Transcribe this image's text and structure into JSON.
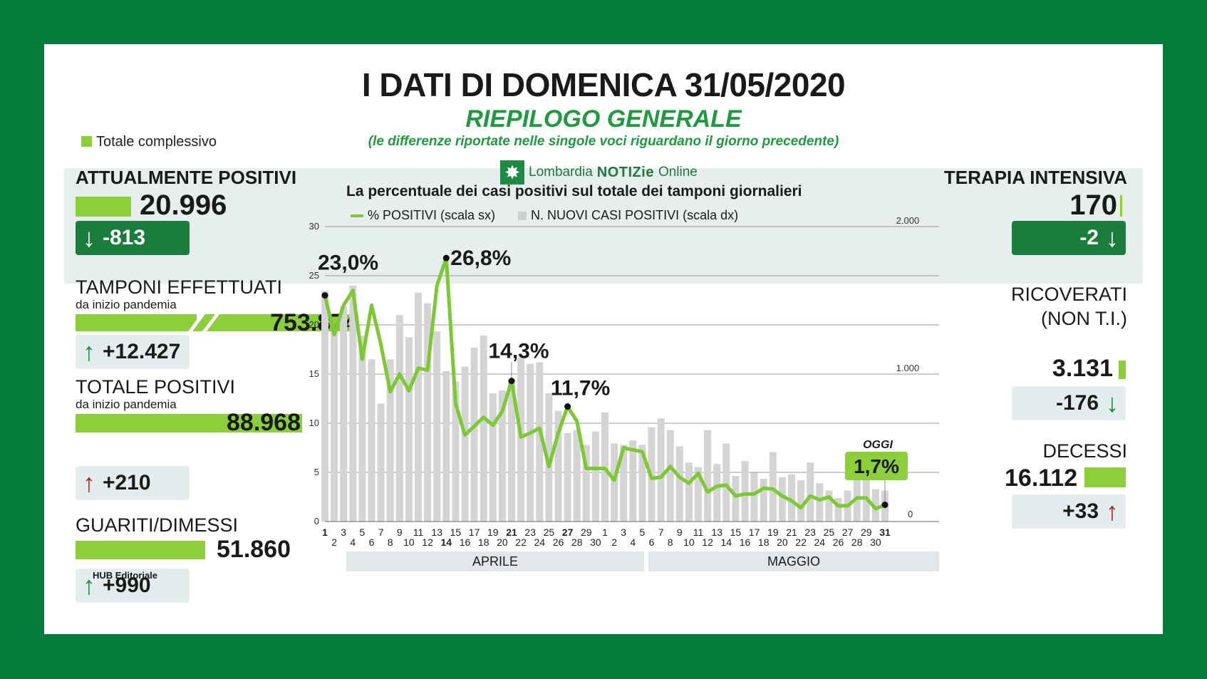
{
  "header": {
    "title": "I DATI DI DOMENICA 31/05/2020",
    "subtitle": "RIEPILOGO GENERALE",
    "note": "(le differenze riportate nelle singole voci riguardano il giorno precedente)",
    "legend_total": "Totale complessivo",
    "logo_prefix": "Lombardia",
    "logo_main": "NOTIZie",
    "logo_suffix": "Online",
    "credit": "HUB Editoriale"
  },
  "left": {
    "attualmente": {
      "label": "ATTUALMENTE POSITIVI",
      "value": "20.996",
      "delta": "-813"
    },
    "tamponi": {
      "label": "TAMPONI EFFETTUATI",
      "sublabel": "da inizio pandemia",
      "value": "753.874",
      "delta": "+12.427"
    },
    "totale": {
      "label": "TOTALE POSITIVI",
      "sublabel": "da inizio pandemia",
      "value": "88.968",
      "delta": "+210"
    },
    "guariti": {
      "label": "GUARITI/DIMESSI",
      "value": "51.860",
      "delta": "+990"
    }
  },
  "right": {
    "terapia": {
      "label": "TERAPIA INTENSIVA",
      "value": "170",
      "delta": "-2"
    },
    "ricoverati": {
      "label1": "RICOVERATI",
      "label2": "(NON T.I.)",
      "value": "3.131",
      "delta": "-176"
    },
    "decessi": {
      "label": "DECESSI",
      "value": "16.112",
      "delta": "+33"
    }
  },
  "colors": {
    "brand_green": "#047c3c",
    "bar_green": "#8ccf3c",
    "line_green": "#7dc935",
    "bar_gray": "#d4d4d4",
    "up_red": "#a8231c"
  },
  "chart_data": {
    "type": "bar+line",
    "title": "La percentuale dei casi positivi sul totale dei tamponi giornalieri",
    "legend": [
      "% POSITIVI (scala sx)",
      "N. NUOVI CASI POSITIVI (scala dx)"
    ],
    "y_left_ticks": [
      "0",
      "5",
      "10",
      "15",
      "20",
      "25",
      "30"
    ],
    "y_left_range": [
      0,
      30
    ],
    "y_right_ticks": [
      "0",
      "1.000",
      "2.000"
    ],
    "y_right_range": [
      0,
      2000
    ],
    "months": [
      "APRILE",
      "MAGGIO"
    ],
    "categories": [
      "1",
      "2",
      "3",
      "4",
      "5",
      "6",
      "7",
      "8",
      "9",
      "10",
      "11",
      "12",
      "13",
      "14",
      "15",
      "16",
      "17",
      "18",
      "19",
      "20",
      "21",
      "22",
      "23",
      "24",
      "25",
      "26",
      "27",
      "28",
      "29",
      "30",
      "1",
      "2",
      "3",
      "4",
      "5",
      "6",
      "7",
      "8",
      "9",
      "10",
      "11",
      "12",
      "13",
      "14",
      "15",
      "16",
      "17",
      "18",
      "19",
      "20",
      "21",
      "22",
      "23",
      "24",
      "25",
      "26",
      "27",
      "28",
      "29",
      "30",
      "31"
    ],
    "bold_categories": [
      "1",
      "14",
      "21",
      "27",
      "31"
    ],
    "series": [
      {
        "name": "% POSITIVI (scala sx)",
        "kind": "line",
        "values": [
          23.0,
          19.0,
          22.0,
          23.5,
          16.5,
          22.0,
          18.0,
          13.2,
          15.0,
          13.3,
          15.6,
          15.4,
          24.0,
          26.8,
          12.0,
          8.8,
          9.7,
          10.6,
          9.8,
          11.2,
          14.3,
          8.6,
          9.0,
          9.5,
          5.6,
          9.0,
          11.7,
          10.2,
          5.4,
          5.4,
          5.4,
          4.2,
          7.5,
          7.3,
          7.1,
          4.4,
          4.5,
          5.6,
          4.5,
          3.9,
          4.9,
          3.0,
          3.6,
          3.7,
          2.6,
          2.8,
          2.8,
          3.4,
          3.3,
          2.6,
          2.1,
          1.4,
          2.6,
          2.2,
          2.5,
          1.6,
          1.6,
          2.4,
          2.4,
          1.3,
          1.7
        ]
      },
      {
        "name": "N. NUOVI CASI POSITIVI (scala dx)",
        "kind": "bar",
        "values": [
          1565,
          1290,
          1460,
          1600,
          1260,
          1100,
          800,
          1100,
          1400,
          1250,
          1550,
          1480,
          1290,
          1020,
          950,
          1050,
          1180,
          1260,
          870,
          890,
          960,
          1110,
          1070,
          1080,
          870,
          750,
          600,
          620,
          520,
          610,
          740,
          530,
          520,
          550,
          520,
          640,
          700,
          620,
          510,
          400,
          370,
          620,
          390,
          530,
          310,
          410,
          330,
          290,
          470,
          300,
          320,
          280,
          400,
          260,
          210,
          160,
          210,
          360,
          330,
          220,
          210
        ]
      }
    ],
    "annotations": [
      {
        "label": "23,0%",
        "x": "1",
        "y": 23.0
      },
      {
        "label": "26,8%",
        "x": "14",
        "y": 26.8
      },
      {
        "label": "14,3%",
        "x": "21",
        "y": 14.3
      },
      {
        "label": "11,7%",
        "x": "27",
        "y": 11.7
      },
      {
        "label": "OGGI",
        "x": "31",
        "y": 1.7
      },
      {
        "label": "1,7%",
        "x": "31",
        "y": 1.7
      }
    ]
  }
}
